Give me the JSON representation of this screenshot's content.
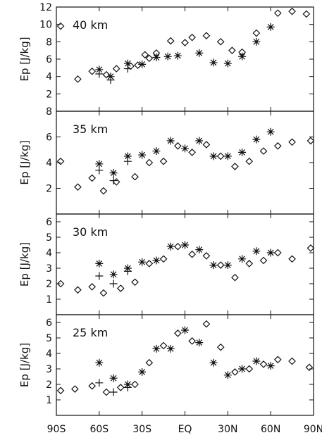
{
  "chart_data": {
    "type": "scatter",
    "x_ticks": [
      "90S",
      "60S",
      "30S",
      "EQ",
      "30N",
      "60N",
      "90N"
    ],
    "x_tick_values": [
      -90,
      -60,
      -30,
      0,
      30,
      60,
      90
    ],
    "xlim": [
      -90,
      90
    ],
    "panels": [
      {
        "label": "40 km",
        "ylabel": "Ep [J/kg]",
        "ylim": [
          0,
          12
        ],
        "yticks": [
          2,
          4,
          6,
          8,
          10,
          12
        ],
        "series": [
          {
            "marker": "diamond",
            "points": [
              [
                -87,
                9.8
              ],
              [
                -75,
                3.7
              ],
              [
                -65,
                4.6
              ],
              [
                -55,
                4.2
              ],
              [
                -48,
                4.9
              ],
              [
                -38,
                5.2
              ],
              [
                -33,
                5.3
              ],
              [
                -28,
                6.5
              ],
              [
                -25,
                6.1
              ],
              [
                -20,
                6.7
              ],
              [
                -10,
                8.1
              ],
              [
                0,
                7.9
              ],
              [
                5,
                8.5
              ],
              [
                15,
                8.7
              ],
              [
                25,
                8.0
              ],
              [
                33,
                7.0
              ],
              [
                40,
                6.8
              ],
              [
                50,
                9.0
              ],
              [
                65,
                11.3
              ],
              [
                75,
                11.5
              ],
              [
                85,
                11.2
              ]
            ]
          },
          {
            "marker": "star",
            "points": [
              [
                -60,
                4.8
              ],
              [
                -52,
                4.0
              ],
              [
                -40,
                5.5
              ],
              [
                -30,
                5.4
              ],
              [
                -20,
                6.2
              ],
              [
                -12,
                6.3
              ],
              [
                -5,
                6.4
              ],
              [
                10,
                6.7
              ],
              [
                20,
                5.6
              ],
              [
                30,
                5.5
              ],
              [
                40,
                6.3
              ],
              [
                50,
                8.0
              ],
              [
                60,
                9.7
              ]
            ]
          },
          {
            "marker": "plus",
            "points": [
              [
                -60,
                4.3
              ],
              [
                -52,
                3.6
              ],
              [
                -40,
                4.9
              ]
            ]
          }
        ]
      },
      {
        "label": "35 km",
        "ylabel": "Ep [J/kg]",
        "ylim": [
          0,
          8
        ],
        "yticks": [
          2,
          4,
          6,
          8
        ],
        "series": [
          {
            "marker": "diamond",
            "points": [
              [
                -87,
                4.1
              ],
              [
                -75,
                2.1
              ],
              [
                -65,
                2.8
              ],
              [
                -57,
                1.8
              ],
              [
                -48,
                2.5
              ],
              [
                -35,
                2.9
              ],
              [
                -25,
                4.0
              ],
              [
                -15,
                4.1
              ],
              [
                -5,
                5.3
              ],
              [
                5,
                4.8
              ],
              [
                15,
                5.4
              ],
              [
                25,
                4.5
              ],
              [
                35,
                3.7
              ],
              [
                45,
                4.1
              ],
              [
                55,
                4.9
              ],
              [
                65,
                5.3
              ],
              [
                75,
                5.6
              ],
              [
                88,
                5.7
              ]
            ]
          },
          {
            "marker": "star",
            "points": [
              [
                -60,
                3.9
              ],
              [
                -50,
                3.2
              ],
              [
                -40,
                4.5
              ],
              [
                -30,
                4.6
              ],
              [
                -20,
                4.9
              ],
              [
                -10,
                5.7
              ],
              [
                0,
                5.1
              ],
              [
                10,
                5.7
              ],
              [
                20,
                4.5
              ],
              [
                30,
                4.5
              ],
              [
                40,
                4.8
              ],
              [
                50,
                5.8
              ],
              [
                60,
                6.4
              ]
            ]
          },
          {
            "marker": "plus",
            "points": [
              [
                -60,
                3.4
              ],
              [
                -50,
                2.6
              ],
              [
                -40,
                4.1
              ]
            ]
          }
        ]
      },
      {
        "label": "30 km",
        "ylabel": "Ep [J/kg]",
        "ylim": [
          0,
          6.5
        ],
        "yticks": [
          1,
          2,
          3,
          4,
          5,
          6
        ],
        "series": [
          {
            "marker": "diamond",
            "points": [
              [
                -87,
                2.0
              ],
              [
                -75,
                1.6
              ],
              [
                -65,
                1.8
              ],
              [
                -57,
                1.4
              ],
              [
                -45,
                1.7
              ],
              [
                -35,
                2.1
              ],
              [
                -25,
                3.3
              ],
              [
                -15,
                3.6
              ],
              [
                -5,
                4.4
              ],
              [
                5,
                3.9
              ],
              [
                15,
                3.8
              ],
              [
                25,
                3.2
              ],
              [
                35,
                2.4
              ],
              [
                45,
                3.3
              ],
              [
                55,
                3.5
              ],
              [
                65,
                4.0
              ],
              [
                75,
                3.6
              ],
              [
                88,
                4.3
              ]
            ]
          },
          {
            "marker": "star",
            "points": [
              [
                -60,
                3.3
              ],
              [
                -50,
                2.6
              ],
              [
                -40,
                3.0
              ],
              [
                -30,
                3.4
              ],
              [
                -20,
                3.5
              ],
              [
                -10,
                4.4
              ],
              [
                0,
                4.5
              ],
              [
                10,
                4.2
              ],
              [
                20,
                3.2
              ],
              [
                30,
                3.2
              ],
              [
                40,
                3.6
              ],
              [
                50,
                4.1
              ],
              [
                60,
                4.0
              ]
            ]
          },
          {
            "marker": "plus",
            "points": [
              [
                -60,
                2.5
              ],
              [
                -50,
                2.0
              ],
              [
                -40,
                2.8
              ]
            ]
          }
        ]
      },
      {
        "label": "25 km",
        "ylabel": "Ep [J/kg]",
        "ylim": [
          0,
          6.5
        ],
        "yticks": [
          1,
          2,
          3,
          4,
          5,
          6
        ],
        "series": [
          {
            "marker": "diamond",
            "points": [
              [
                -87,
                1.6
              ],
              [
                -77,
                1.7
              ],
              [
                -65,
                1.9
              ],
              [
                -55,
                1.5
              ],
              [
                -45,
                1.8
              ],
              [
                -35,
                2.0
              ],
              [
                -25,
                3.4
              ],
              [
                -15,
                4.5
              ],
              [
                -5,
                5.3
              ],
              [
                5,
                4.8
              ],
              [
                15,
                5.9
              ],
              [
                25,
                4.4
              ],
              [
                35,
                2.8
              ],
              [
                45,
                3.0
              ],
              [
                55,
                3.3
              ],
              [
                65,
                3.6
              ],
              [
                75,
                3.5
              ],
              [
                87,
                3.1
              ]
            ]
          },
          {
            "marker": "star",
            "points": [
              [
                -60,
                3.4
              ],
              [
                -50,
                2.4
              ],
              [
                -40,
                2.0
              ],
              [
                -30,
                2.8
              ],
              [
                -20,
                4.3
              ],
              [
                -10,
                4.3
              ],
              [
                0,
                5.5
              ],
              [
                10,
                4.7
              ],
              [
                20,
                3.4
              ],
              [
                30,
                2.6
              ],
              [
                40,
                3.0
              ],
              [
                50,
                3.5
              ],
              [
                60,
                3.2
              ]
            ]
          },
          {
            "marker": "plus",
            "points": [
              [
                -60,
                2.1
              ],
              [
                -50,
                1.5
              ],
              [
                -40,
                1.8
              ]
            ]
          }
        ]
      }
    ]
  }
}
